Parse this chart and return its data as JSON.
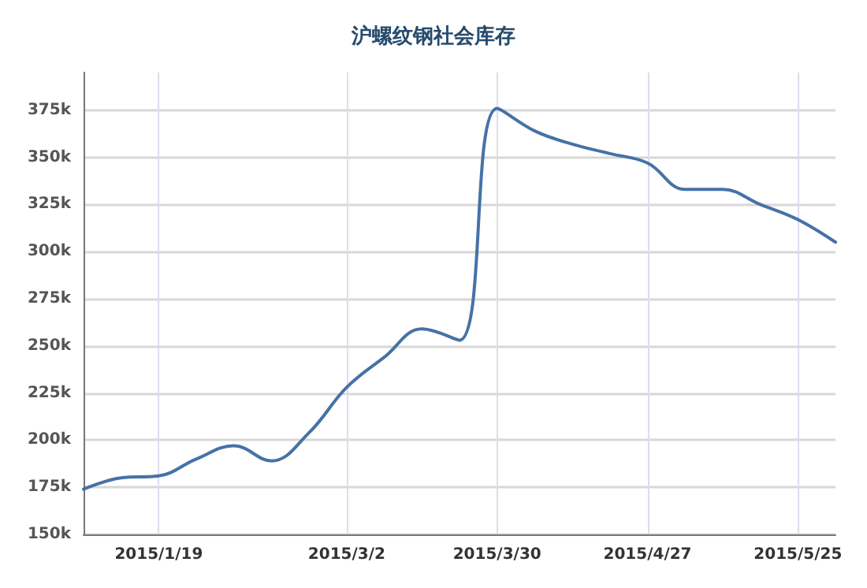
{
  "chart_data": {
    "type": "line",
    "title": "沪螺纹钢社会库存",
    "categories": [
      null,
      null,
      "2015/1/19",
      null,
      null,
      null,
      null,
      "2015/3/2",
      null,
      null,
      null,
      "2015/3/30",
      null,
      null,
      null,
      "2015/4/27",
      null,
      null,
      null,
      "2015/5/25",
      null
    ],
    "series": [
      {
        "color": "#4572a7",
        "values": [
          174000,
          180000,
          181000,
          190000,
          197000,
          189000,
          204000,
          228000,
          244000,
          259000,
          253000,
          376000,
          364000,
          357000,
          352000,
          347000,
          333000,
          333000,
          325000,
          317000,
          305000
        ]
      }
    ],
    "ylim": [
      150000,
      395000
    ],
    "yticks": [
      {
        "value": 150000,
        "label": "150k"
      },
      {
        "value": 175000,
        "label": "175k"
      },
      {
        "value": 200000,
        "label": "200k"
      },
      {
        "value": 225000,
        "label": "225k"
      },
      {
        "value": 250000,
        "label": "250k"
      },
      {
        "value": 275000,
        "label": "275k"
      },
      {
        "value": 300000,
        "label": "300k"
      },
      {
        "value": 325000,
        "label": "325k"
      },
      {
        "value": 350000,
        "label": "350k"
      },
      {
        "value": 375000,
        "label": "375k"
      }
    ],
    "grid": true,
    "marker": "none",
    "line_style": "solid"
  }
}
